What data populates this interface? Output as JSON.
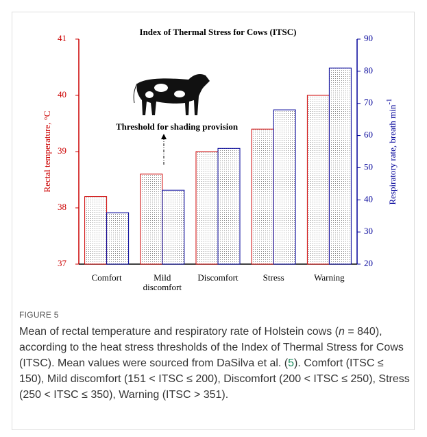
{
  "chart_data": {
    "type": "bar",
    "title": "Index of Thermal Stress for Cows (ITSC)",
    "categories": [
      "Comfort",
      "Mild discomfort",
      "Discomfort",
      "Stress",
      "Warning"
    ],
    "y_label": "Rectal temperature, °C",
    "y2_label": "Respiratory rate, breath min",
    "y2_label_sup": "-1",
    "annotation": "Threshold for shading provision",
    "series": [
      {
        "color": "#cc0000",
        "values": [
          38.2,
          38.6,
          39.0,
          39.4,
          40.0
        ]
      },
      {
        "color": "#000099",
        "axis": "y2",
        "values": [
          36,
          43,
          56,
          68,
          81
        ]
      }
    ],
    "ylim": [
      37,
      41
    ],
    "yticks": [
      37,
      38,
      39,
      40,
      41
    ],
    "y2lim": [
      20,
      90
    ],
    "y2ticks": [
      20,
      30,
      40,
      50,
      60,
      70,
      80,
      90
    ]
  },
  "figure_label": "FIGURE 5",
  "caption": [
    "Mean of rectal temperature and respiratory rate of Holstein cows (",
    "n",
    " = 840), according to the heat stress thresholds of the Index of Thermal Stress for Cows (ITSC). Mean values were sourced from DaSilva et al. (",
    "5",
    "). Comfort (ITSC ≤ 150), Mild discomfort (151 < ITSC ≤ 200), Discomfort (200 < ITSC ≤ 250), Stress (250 < ITSC ≤ 350), Warning (ITSC > 351)."
  ]
}
